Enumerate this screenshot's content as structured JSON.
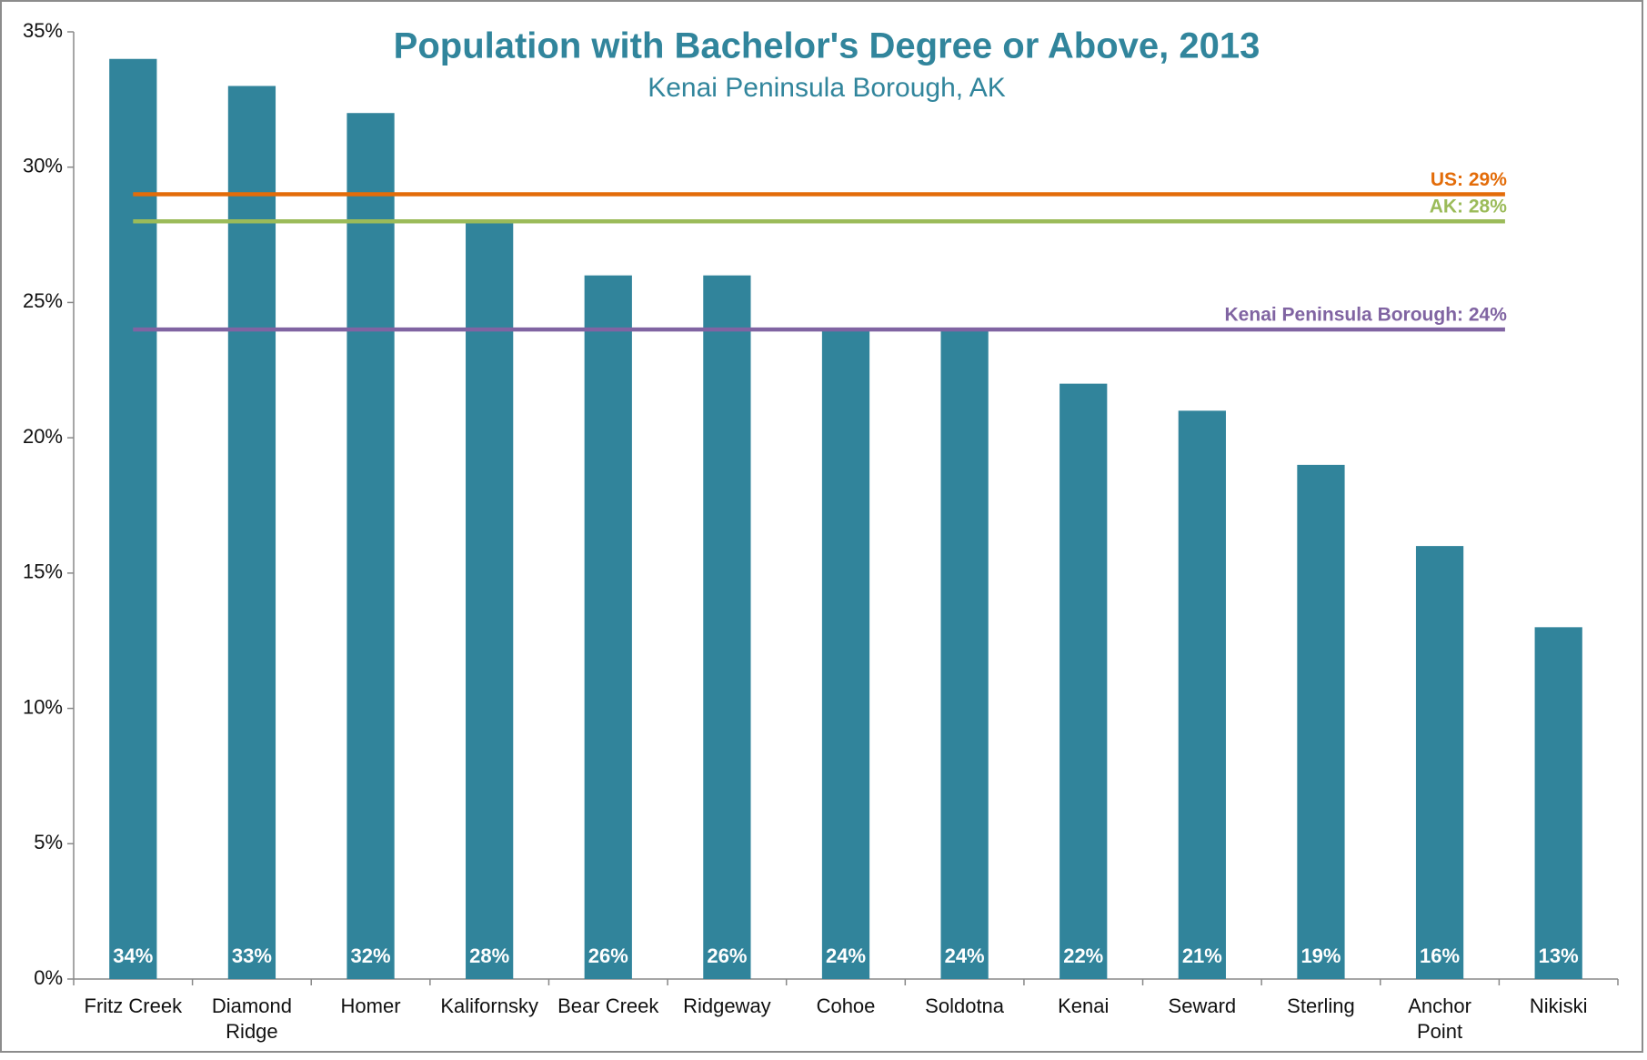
{
  "chart_data": {
    "type": "bar",
    "title": "Population with Bachelor's Degree or Above, 2013",
    "subtitle": "Kenai Peninsula Borough, AK",
    "categories": [
      "Fritz Creek",
      "Diamond Ridge",
      "Homer",
      "Kalifornsky",
      "Bear Creek",
      "Ridgeway",
      "Cohoe",
      "Soldotna",
      "Kenai",
      "Seward",
      "Sterling",
      "Anchor Point",
      "Nikiski"
    ],
    "values": [
      34,
      33,
      32,
      28,
      26,
      26,
      24,
      24,
      22,
      21,
      19,
      16,
      13
    ],
    "value_labels": [
      "34%",
      "33%",
      "32%",
      "28%",
      "26%",
      "26%",
      "24%",
      "24%",
      "22%",
      "21%",
      "19%",
      "16%",
      "13%"
    ],
    "color": "#31849b",
    "ylim": [
      0,
      35
    ],
    "yticks": [
      {
        "value": 0,
        "label": "0%"
      },
      {
        "value": 5,
        "label": "5%"
      },
      {
        "value": 10,
        "label": "10%"
      },
      {
        "value": 15,
        "label": "15%"
      },
      {
        "value": 20,
        "label": "20%"
      },
      {
        "value": 25,
        "label": "25%"
      },
      {
        "value": 30,
        "label": "30%"
      },
      {
        "value": 35,
        "label": "35%"
      }
    ],
    "reference_lines": [
      {
        "label": "US: 29%",
        "value": 29,
        "color": "#e36c09"
      },
      {
        "label": "AK: 28%",
        "value": 28,
        "color": "#9bbb59"
      },
      {
        "label": "Kenai Peninsula Borough: 24%",
        "value": 24,
        "color": "#8064a2"
      }
    ]
  }
}
